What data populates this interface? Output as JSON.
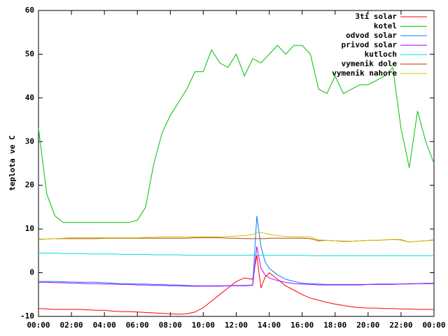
{
  "chart_data": {
    "type": "line",
    "ylabel": "teplota ve C",
    "x": [
      0,
      0.5,
      1,
      1.5,
      2,
      2.5,
      3,
      3.5,
      4,
      4.5,
      5,
      5.5,
      6,
      6.5,
      7,
      7.5,
      8,
      8.5,
      9,
      9.5,
      10,
      10.5,
      11,
      11.5,
      12,
      12.5,
      13,
      13.25,
      13.5,
      13.75,
      14,
      14.5,
      15,
      15.5,
      16,
      16.5,
      17,
      17.5,
      18,
      18.5,
      19,
      19.5,
      20,
      20.5,
      21,
      21.5,
      22,
      22.5,
      23,
      23.5,
      24
    ],
    "xlim": [
      0,
      24
    ],
    "xticks": [
      {
        "value": 0,
        "label": "00:00"
      },
      {
        "value": 2,
        "label": "02:00"
      },
      {
        "value": 4,
        "label": "04:00"
      },
      {
        "value": 6,
        "label": "06:00"
      },
      {
        "value": 8,
        "label": "08:00"
      },
      {
        "value": 10,
        "label": "10:00"
      },
      {
        "value": 12,
        "label": "12:00"
      },
      {
        "value": 14,
        "label": "14:00"
      },
      {
        "value": 16,
        "label": "16:00"
      },
      {
        "value": 18,
        "label": "18:00"
      },
      {
        "value": 20,
        "label": "20:00"
      },
      {
        "value": 22,
        "label": "22:00"
      },
      {
        "value": 24,
        "label": "00:00"
      }
    ],
    "ylim": [
      -10,
      60
    ],
    "yticks": [
      -10,
      0,
      10,
      20,
      30,
      40,
      50,
      60
    ],
    "legend": "top-right",
    "series": [
      {
        "name": "3ti solar",
        "color": "#ff0000",
        "values": [
          -8.2,
          -8.3,
          -8.4,
          -8.4,
          -8.4,
          -8.4,
          -8.5,
          -8.6,
          -8.6,
          -8.8,
          -8.9,
          -8.9,
          -9,
          -9.1,
          -9.2,
          -9.3,
          -9.4,
          -9.5,
          -9.4,
          -9,
          -8,
          -6.5,
          -5,
          -3.5,
          -2,
          -1.2,
          -1.5,
          4,
          -3.5,
          -1,
          0,
          -1.5,
          -3,
          -4,
          -5,
          -5.8,
          -6.3,
          -6.8,
          -7.2,
          -7.5,
          -7.8,
          -8,
          -8.1,
          -8.1,
          -8.2,
          -8.2,
          -8.3,
          -8.3,
          -8.4,
          -8.4,
          -8.4
        ]
      },
      {
        "name": "kotel",
        "color": "#00c000",
        "values": [
          33,
          18,
          13,
          11.5,
          11.5,
          11.5,
          11.5,
          11.5,
          11.5,
          11.5,
          11.5,
          11.5,
          12,
          15,
          25,
          32,
          36,
          39,
          42,
          46,
          46,
          51,
          48,
          47,
          50,
          45,
          49,
          48.5,
          48,
          49,
          50,
          52,
          50,
          52,
          52,
          50,
          42,
          41,
          45,
          41,
          42,
          43,
          43,
          44,
          45,
          47,
          33,
          24,
          37,
          30,
          25
        ]
      },
      {
        "name": "odvod solar",
        "color": "#0080ff",
        "values": [
          -2,
          -2,
          -2,
          -2.1,
          -2.1,
          -2.2,
          -2.2,
          -2.2,
          -2.3,
          -2.4,
          -2.5,
          -2.5,
          -2.6,
          -2.6,
          -2.7,
          -2.7,
          -2.8,
          -2.8,
          -2.9,
          -3,
          -3,
          -3,
          -3,
          -3,
          -2.9,
          -2.9,
          -2.8,
          13,
          6,
          2.5,
          1,
          -0.5,
          -1.5,
          -2,
          -2.4,
          -2.5,
          -2.6,
          -2.7,
          -2.7,
          -2.7,
          -2.7,
          -2.7,
          -2.7,
          -2.6,
          -2.6,
          -2.6,
          -2.6,
          -2.5,
          -2.5,
          -2.4,
          -2.4
        ]
      },
      {
        "name": "privod solar",
        "color": "#c000ff",
        "values": [
          -2.2,
          -2.2,
          -2.3,
          -2.3,
          -2.4,
          -2.4,
          -2.5,
          -2.5,
          -2.6,
          -2.6,
          -2.7,
          -2.7,
          -2.8,
          -2.8,
          -2.9,
          -2.9,
          -3,
          -3,
          -3.1,
          -3.1,
          -3.1,
          -3.1,
          -3.1,
          -3,
          -3,
          -3,
          -2.9,
          6,
          1,
          -0.5,
          -1.2,
          -1.8,
          -2.2,
          -2.5,
          -2.6,
          -2.7,
          -2.8,
          -2.8,
          -2.8,
          -2.8,
          -2.8,
          -2.8,
          -2.7,
          -2.7,
          -2.7,
          -2.7,
          -2.6,
          -2.6,
          -2.5,
          -2.5,
          -2.5
        ]
      },
      {
        "name": "kutloch",
        "color": "#00dddd",
        "values": [
          4.5,
          4.5,
          4.5,
          4.4,
          4.4,
          4.4,
          4.3,
          4.3,
          4.3,
          4.3,
          4.2,
          4.2,
          4.2,
          4.2,
          4.1,
          4.1,
          4.1,
          4.1,
          4,
          4,
          4,
          4,
          4,
          4,
          4,
          4,
          4,
          4,
          4,
          4,
          4,
          4,
          4,
          4,
          4,
          3.9,
          3.9,
          3.9,
          3.9,
          3.9,
          3.9,
          3.9,
          3.9,
          3.9,
          3.9,
          3.9,
          3.9,
          3.9,
          3.9,
          3.9,
          3.9
        ]
      },
      {
        "name": "vymenik dole",
        "color": "#c04000",
        "values": [
          7.7,
          7.7,
          7.8,
          7.8,
          7.8,
          7.8,
          7.8,
          7.8,
          7.9,
          7.9,
          7.9,
          7.9,
          7.9,
          7.9,
          7.9,
          7.9,
          7.9,
          7.9,
          7.9,
          8,
          8,
          8,
          8,
          7.9,
          7.9,
          7.8,
          7.8,
          7.8,
          7.8,
          7.8,
          7.9,
          7.9,
          7.9,
          7.9,
          7.9,
          7.8,
          7.3,
          7.4,
          7.3,
          7.2,
          7.2,
          7.3,
          7.4,
          7.4,
          7.5,
          7.6,
          7.5,
          7,
          7.2,
          7.3,
          7.5
        ]
      },
      {
        "name": "vymenik nahore",
        "color": "#c8c800",
        "values": [
          7.6,
          7.7,
          7.8,
          7.9,
          8,
          8,
          8,
          8,
          8,
          8,
          8,
          8,
          8,
          8.1,
          8.1,
          8.2,
          8.2,
          8.2,
          8.2,
          8.2,
          8.2,
          8.2,
          8.2,
          8.3,
          8.4,
          8.5,
          8.7,
          9.2,
          9.2,
          9,
          8.8,
          8.5,
          8.3,
          8.2,
          8.2,
          8.2,
          7.5,
          7.4,
          7.3,
          7.1,
          7.2,
          7.3,
          7.4,
          7.4,
          7.5,
          7.6,
          7.6,
          7,
          7.2,
          7.3,
          7.6
        ]
      }
    ]
  }
}
